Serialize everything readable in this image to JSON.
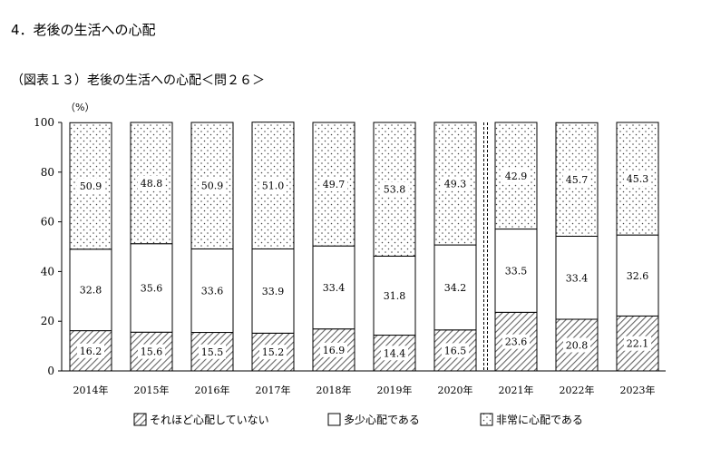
{
  "section_title": "4．老後の生活への心配",
  "chart_data": {
    "type": "bar",
    "stacked": true,
    "title": "（図表１３）老後の生活への心配＜問２６＞",
    "unit_label": "（%）",
    "ylim": [
      0,
      100
    ],
    "yticks": [
      0,
      20,
      40,
      60,
      80,
      100
    ],
    "categories": [
      "2014年",
      "2015年",
      "2016年",
      "2017年",
      "2018年",
      "2019年",
      "2020年",
      "2021年",
      "2022年",
      "2023年"
    ],
    "break_between": [
      "2020年",
      "2021年"
    ],
    "series": [
      {
        "name": "それほど心配していない",
        "pattern": "hatch",
        "values": [
          16.2,
          15.6,
          15.5,
          15.2,
          16.9,
          14.4,
          16.5,
          23.6,
          20.8,
          22.1
        ]
      },
      {
        "name": "多少心配である",
        "pattern": "plain",
        "values": [
          32.8,
          35.6,
          33.6,
          33.9,
          33.4,
          31.8,
          34.2,
          33.5,
          33.4,
          32.6
        ]
      },
      {
        "name": "非常に心配である",
        "pattern": "dots",
        "values": [
          50.9,
          48.8,
          50.9,
          51.0,
          49.7,
          53.8,
          49.3,
          42.9,
          45.7,
          45.3
        ]
      }
    ],
    "legend_position": "bottom",
    "grid": false
  }
}
